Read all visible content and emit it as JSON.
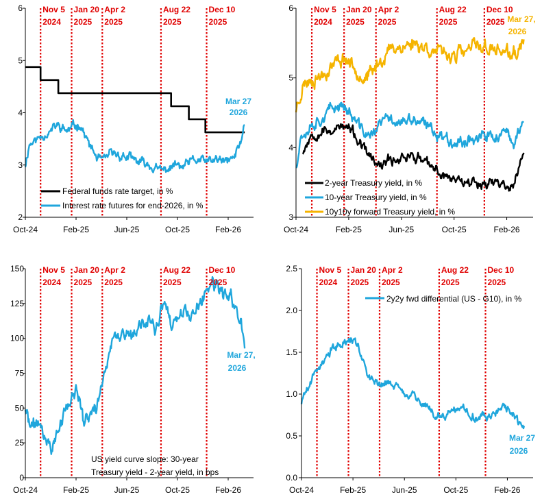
{
  "colors": {
    "black": "#000000",
    "blue": "#1fa6dc",
    "gold": "#f5b400",
    "red": "#e00000",
    "axis": "#000000"
  },
  "events": [
    {
      "label": "Nov 5",
      "year": "2024",
      "month": 1.2
    },
    {
      "label": "Jan 20",
      "year": "2025",
      "month": 3.65
    },
    {
      "label": "Apr 2",
      "year": "2025",
      "month": 6.07
    },
    {
      "label": "Aug 22",
      "year": "2025",
      "month": 10.7
    },
    {
      "label": "Dec 10",
      "year": "2025",
      "month": 14.3
    }
  ],
  "chart_data": [
    {
      "type": "line",
      "id": "panel1",
      "xlabels": [
        "Oct-24",
        "Feb-25",
        "Jun-25",
        "Oct-25",
        "Feb-26"
      ],
      "xticks_month": [
        0,
        4,
        8,
        12,
        16
      ],
      "xlim_month": [
        0,
        18
      ],
      "ylim": [
        2,
        6
      ],
      "yticks": [
        "2",
        "3",
        "4",
        "5",
        "6"
      ],
      "ytick_values": [
        2,
        3,
        4,
        5,
        6
      ],
      "legend": [
        "Federal funds rate target, in %",
        "Interest rate futures for end-2026, in %"
      ],
      "end_label": [
        "Mar 27",
        "2026"
      ],
      "series": [
        {
          "name": "Federal funds rate target, in %",
          "color": "black",
          "kind": "step",
          "points": [
            [
              0,
              4.875
            ],
            [
              1.2,
              4.875
            ],
            [
              1.2,
              4.625
            ],
            [
              2.6,
              4.625
            ],
            [
              2.6,
              4.375
            ],
            [
              11.5,
              4.375
            ],
            [
              11.5,
              4.125
            ],
            [
              12.9,
              4.125
            ],
            [
              12.9,
              3.875
            ],
            [
              14.2,
              3.875
            ],
            [
              14.2,
              3.625
            ],
            [
              17.3,
              3.625
            ]
          ]
        },
        {
          "name": "Interest rate futures for end-2026, in %",
          "color": "blue",
          "kind": "noisy",
          "anchors": [
            [
              0,
              3.0
            ],
            [
              0.3,
              3.4
            ],
            [
              1.0,
              3.5
            ],
            [
              1.5,
              3.6
            ],
            [
              2.0,
              3.65
            ],
            [
              2.5,
              3.75
            ],
            [
              3.3,
              3.65
            ],
            [
              4.3,
              3.8
            ],
            [
              5.0,
              3.4
            ],
            [
              5.6,
              3.15
            ],
            [
              6.2,
              3.05
            ],
            [
              6.6,
              3.2
            ],
            [
              7.3,
              3.2
            ],
            [
              8.0,
              3.15
            ],
            [
              9.0,
              3.05
            ],
            [
              9.8,
              3.0
            ],
            [
              10.4,
              2.9
            ],
            [
              11.0,
              2.9
            ],
            [
              11.8,
              3.0
            ],
            [
              12.4,
              2.95
            ],
            [
              13.0,
              3.05
            ],
            [
              13.6,
              3.1
            ],
            [
              14.3,
              3.05
            ],
            [
              15.0,
              3.1
            ],
            [
              15.8,
              3.05
            ],
            [
              16.5,
              3.15
            ],
            [
              17.0,
              3.45
            ],
            [
              17.3,
              3.8
            ]
          ],
          "amp": 0.06,
          "seed": 11
        }
      ]
    },
    {
      "type": "line",
      "id": "panel2",
      "xlabels": [
        "Oct-24",
        "Feb-25",
        "Jun-25",
        "Oct-25",
        "Feb-26"
      ],
      "xticks_month": [
        0,
        4,
        8,
        12,
        16
      ],
      "xlim_month": [
        0,
        18
      ],
      "ylim": [
        3,
        6
      ],
      "yticks": [
        "3",
        "4",
        "5",
        "6"
      ],
      "ytick_values": [
        3,
        4,
        5,
        6
      ],
      "legend": [
        "2-year Treasury yield, in %",
        "10-year Treasury yield, in %",
        "10y10y forward Treasury yield, in %"
      ],
      "end_label": [
        "Mar 27,",
        "2026"
      ],
      "series": [
        {
          "name": "10y10y forward Treasury yield, in %",
          "color": "gold",
          "kind": "noisy",
          "anchors": [
            [
              0,
              4.55
            ],
            [
              0.5,
              4.9
            ],
            [
              1.2,
              5.0
            ],
            [
              2.0,
              5.05
            ],
            [
              2.8,
              5.2
            ],
            [
              3.7,
              5.3
            ],
            [
              4.5,
              5.15
            ],
            [
              5.2,
              5.0
            ],
            [
              5.8,
              5.05
            ],
            [
              6.2,
              5.2
            ],
            [
              6.8,
              5.35
            ],
            [
              7.5,
              5.45
            ],
            [
              8.2,
              5.45
            ],
            [
              9.0,
              5.5
            ],
            [
              9.8,
              5.45
            ],
            [
              10.5,
              5.4
            ],
            [
              11.2,
              5.3
            ],
            [
              12.0,
              5.35
            ],
            [
              12.8,
              5.35
            ],
            [
              13.5,
              5.45
            ],
            [
              14.3,
              5.45
            ],
            [
              15.0,
              5.4
            ],
            [
              15.7,
              5.4
            ],
            [
              16.3,
              5.3
            ],
            [
              16.8,
              5.35
            ],
            [
              17.3,
              5.55
            ]
          ],
          "amp": 0.07,
          "seed": 23
        },
        {
          "name": "10-year Treasury yield, in %",
          "color": "blue",
          "kind": "noisy",
          "anchors": [
            [
              0,
              3.75
            ],
            [
              0.4,
              4.2
            ],
            [
              1.2,
              4.35
            ],
            [
              2.0,
              4.45
            ],
            [
              2.8,
              4.55
            ],
            [
              3.5,
              4.65
            ],
            [
              4.2,
              4.45
            ],
            [
              5.0,
              4.25
            ],
            [
              5.7,
              4.15
            ],
            [
              6.2,
              4.3
            ],
            [
              6.8,
              4.4
            ],
            [
              7.5,
              4.4
            ],
            [
              8.2,
              4.35
            ],
            [
              9.0,
              4.4
            ],
            [
              9.8,
              4.3
            ],
            [
              10.5,
              4.25
            ],
            [
              11.2,
              4.15
            ],
            [
              12.0,
              4.1
            ],
            [
              12.8,
              4.1
            ],
            [
              13.5,
              4.15
            ],
            [
              14.3,
              4.15
            ],
            [
              15.0,
              4.15
            ],
            [
              15.8,
              4.2
            ],
            [
              16.4,
              4.05
            ],
            [
              16.9,
              4.2
            ],
            [
              17.3,
              4.42
            ]
          ],
          "amp": 0.06,
          "seed": 37
        },
        {
          "name": "2-year Treasury yield, in %",
          "color": "black",
          "kind": "noisy",
          "anchors": [
            [
              0.5,
              3.95
            ],
            [
              1.2,
              4.2
            ],
            [
              2.0,
              4.25
            ],
            [
              2.8,
              4.25
            ],
            [
              3.5,
              4.3
            ],
            [
              4.2,
              4.25
            ],
            [
              5.0,
              4.0
            ],
            [
              5.7,
              3.85
            ],
            [
              6.3,
              3.7
            ],
            [
              7.0,
              3.8
            ],
            [
              7.8,
              3.85
            ],
            [
              8.5,
              3.9
            ],
            [
              9.3,
              3.85
            ],
            [
              10.0,
              3.75
            ],
            [
              10.7,
              3.65
            ],
            [
              11.3,
              3.6
            ],
            [
              12.0,
              3.55
            ],
            [
              12.8,
              3.55
            ],
            [
              13.5,
              3.5
            ],
            [
              14.3,
              3.5
            ],
            [
              15.0,
              3.5
            ],
            [
              15.8,
              3.48
            ],
            [
              16.4,
              3.42
            ],
            [
              16.9,
              3.65
            ],
            [
              17.3,
              3.97
            ]
          ],
          "amp": 0.05,
          "seed": 53
        }
      ]
    },
    {
      "type": "line",
      "id": "panel3",
      "xlabels": [
        "Oct-24",
        "Feb-25",
        "Jun-25",
        "Oct-25",
        "Feb-26"
      ],
      "xticks_month": [
        0,
        4,
        8,
        12,
        16
      ],
      "xlim_month": [
        0,
        18
      ],
      "ylim": [
        0,
        150
      ],
      "yticks": [
        "0",
        "25",
        "50",
        "75",
        "100",
        "125",
        "150"
      ],
      "ytick_values": [
        0,
        25,
        50,
        75,
        100,
        125,
        150
      ],
      "annotation": [
        "US yield curve slope: 30-year",
        "Treasury yield - 2-year yield, in bps"
      ],
      "end_label": [
        "Mar 27,",
        "2026"
      ],
      "series": [
        {
          "name": "US yield curve slope: 30-year Treasury yield - 2-year yield, in bps",
          "color": "blue",
          "kind": "noisy",
          "anchors": [
            [
              0,
              50
            ],
            [
              0.4,
              35
            ],
            [
              1.0,
              40
            ],
            [
              1.6,
              28
            ],
            [
              2.0,
              22
            ],
            [
              2.5,
              30
            ],
            [
              3.0,
              45
            ],
            [
              3.5,
              55
            ],
            [
              4.1,
              62
            ],
            [
              4.6,
              40
            ],
            [
              5.2,
              45
            ],
            [
              5.8,
              55
            ],
            [
              6.3,
              80
            ],
            [
              6.8,
              95
            ],
            [
              7.4,
              100
            ],
            [
              8.0,
              105
            ],
            [
              8.6,
              100
            ],
            [
              9.2,
              110
            ],
            [
              9.8,
              115
            ],
            [
              10.3,
              105
            ],
            [
              10.9,
              125
            ],
            [
              11.4,
              110
            ],
            [
              12.0,
              110
            ],
            [
              12.6,
              120
            ],
            [
              13.2,
              115
            ],
            [
              13.8,
              125
            ],
            [
              14.4,
              135
            ],
            [
              15.0,
              138
            ],
            [
              15.6,
              130
            ],
            [
              16.2,
              128
            ],
            [
              16.7,
              120
            ],
            [
              17.0,
              115
            ],
            [
              17.3,
              95
            ]
          ],
          "amp": 3.5,
          "seed": 71
        }
      ]
    },
    {
      "type": "line",
      "id": "panel4",
      "xlabels": [
        "Oct-24",
        "Feb-25",
        "Jun-25",
        "Oct-25",
        "Feb-26"
      ],
      "xticks_month": [
        0,
        4,
        8,
        12,
        16
      ],
      "xlim_month": [
        0,
        18
      ],
      "ylim": [
        0,
        2.5
      ],
      "yticks": [
        "0.0",
        "0.5",
        "1.0",
        "1.5",
        "2.0",
        "2.5"
      ],
      "ytick_values": [
        0,
        0.5,
        1.0,
        1.5,
        2.0,
        2.5
      ],
      "legend": [
        "2y2y fwd differential (US - G10), in %"
      ],
      "end_label": [
        "Mar 27",
        "2026"
      ],
      "series": [
        {
          "name": "2y2y fwd differential (US - G10), in %",
          "color": "blue",
          "kind": "noisy",
          "anchors": [
            [
              0,
              0.9
            ],
            [
              0.4,
              1.05
            ],
            [
              1.0,
              1.25
            ],
            [
              1.5,
              1.35
            ],
            [
              2.0,
              1.45
            ],
            [
              2.5,
              1.55
            ],
            [
              3.0,
              1.6
            ],
            [
              3.5,
              1.65
            ],
            [
              4.0,
              1.65
            ],
            [
              4.4,
              1.6
            ],
            [
              4.8,
              1.4
            ],
            [
              5.2,
              1.2
            ],
            [
              5.6,
              1.15
            ],
            [
              6.0,
              1.1
            ],
            [
              6.6,
              1.15
            ],
            [
              7.2,
              1.1
            ],
            [
              7.8,
              1.05
            ],
            [
              8.4,
              1.0
            ],
            [
              9.0,
              0.95
            ],
            [
              9.6,
              0.85
            ],
            [
              10.2,
              0.78
            ],
            [
              10.8,
              0.72
            ],
            [
              11.4,
              0.75
            ],
            [
              12.0,
              0.8
            ],
            [
              12.6,
              0.85
            ],
            [
              13.2,
              0.75
            ],
            [
              13.8,
              0.7
            ],
            [
              14.4,
              0.72
            ],
            [
              15.0,
              0.78
            ],
            [
              15.6,
              0.85
            ],
            [
              16.2,
              0.8
            ],
            [
              16.8,
              0.65
            ],
            [
              17.3,
              0.62
            ]
          ],
          "amp": 0.035,
          "seed": 89
        }
      ]
    }
  ]
}
